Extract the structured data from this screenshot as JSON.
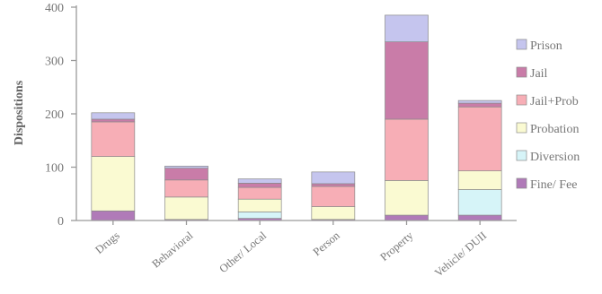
{
  "chart_data": {
    "type": "bar",
    "stacked": true,
    "title": "",
    "xlabel": "",
    "ylabel": "Dispositions",
    "ylim": [
      0,
      400
    ],
    "yticks": [
      0,
      100,
      200,
      300,
      400
    ],
    "grid": false,
    "legend_position": "right",
    "categories": [
      "Drugs",
      "Behavioral",
      "Other/ Local",
      "Person",
      "Property",
      "Vehicle/ DUII"
    ],
    "series": [
      {
        "name": "Fine/ Fee",
        "color": "#b07ab8",
        "values": [
          18,
          2,
          4,
          2,
          10,
          10
        ]
      },
      {
        "name": "Diversion",
        "color": "#d6f4f8",
        "values": [
          0,
          0,
          12,
          0,
          0,
          48
        ]
      },
      {
        "name": "Probation",
        "color": "#fafad2",
        "values": [
          102,
          42,
          24,
          24,
          65,
          35
        ]
      },
      {
        "name": "Jail+Prob",
        "color": "#f7aeb6",
        "values": [
          65,
          32,
          22,
          38,
          115,
          120
        ]
      },
      {
        "name": "Jail",
        "color": "#c97ca8",
        "values": [
          5,
          22,
          8,
          5,
          145,
          7
        ]
      },
      {
        "name": "Prison",
        "color": "#c5c5ee",
        "values": [
          12,
          4,
          8,
          22,
          50,
          5
        ]
      }
    ]
  }
}
